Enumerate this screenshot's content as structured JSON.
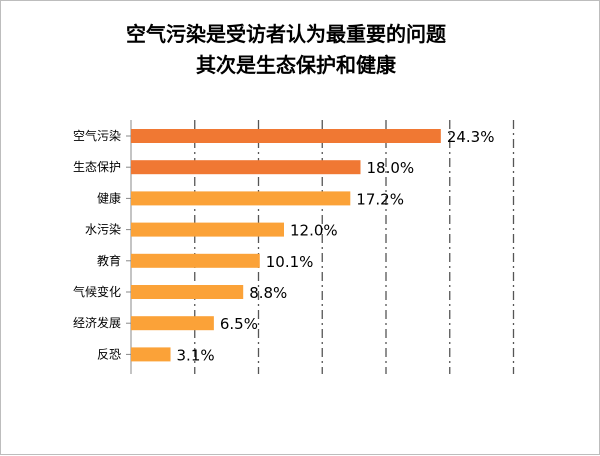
{
  "title": {
    "line1": "空气污染是受访者认为最重要的问题",
    "line2": "其次是生态保护和健康"
  },
  "chart_data": {
    "type": "bar",
    "orientation": "horizontal",
    "title": "空气污染是受访者认为最重要的问题 其次是生态保护和健康",
    "categories": [
      "空气污染",
      "生态保护",
      "健康",
      "水污染",
      "教育",
      "气候变化",
      "经济发展",
      "反恐"
    ],
    "values": [
      24.3,
      18.0,
      17.2,
      12.0,
      10.1,
      8.8,
      6.5,
      3.1
    ],
    "labels": [
      "24.3%",
      "18.0%",
      "17.2%",
      "12.0%",
      "10.1%",
      "8.8%",
      "6.5%",
      "3.1%"
    ],
    "unit": "%",
    "xlim": [
      0,
      30
    ],
    "gridlines": "vertical dashed, every 5 units",
    "legend": "none",
    "colors": {
      "highlight": "#f07833",
      "normal": "#fba238"
    },
    "highlight_count": 2
  }
}
